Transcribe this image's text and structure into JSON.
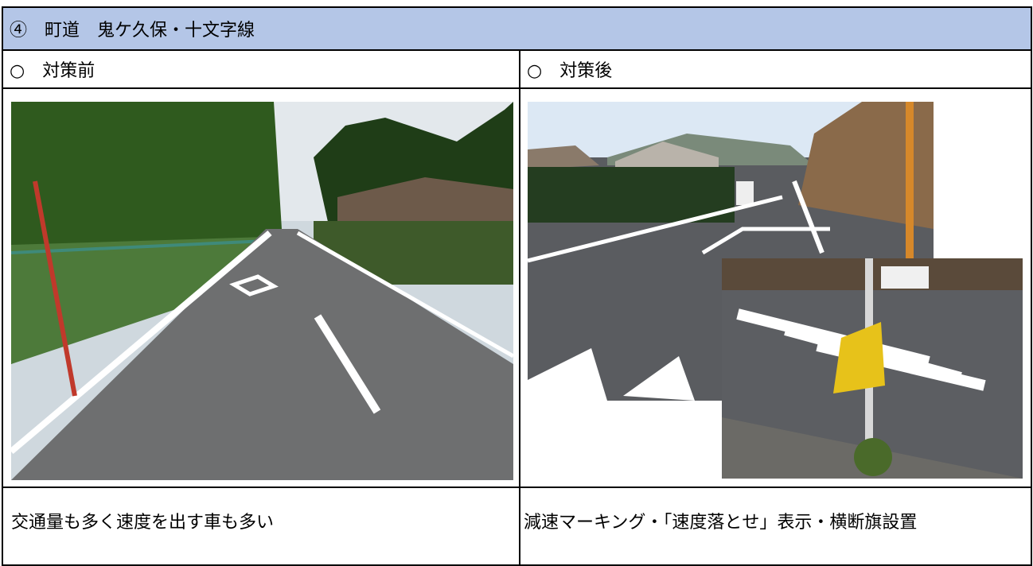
{
  "header": {
    "title": "④　町道　鬼ケ久保・十文字線"
  },
  "columns": [
    {
      "heading": "○　対策前",
      "description": "交通量も多く速度を出す車も多い"
    },
    {
      "heading": "○　対策後",
      "description": "減速マーキング・「速度落とせ」表示・横断旗設置"
    }
  ]
}
